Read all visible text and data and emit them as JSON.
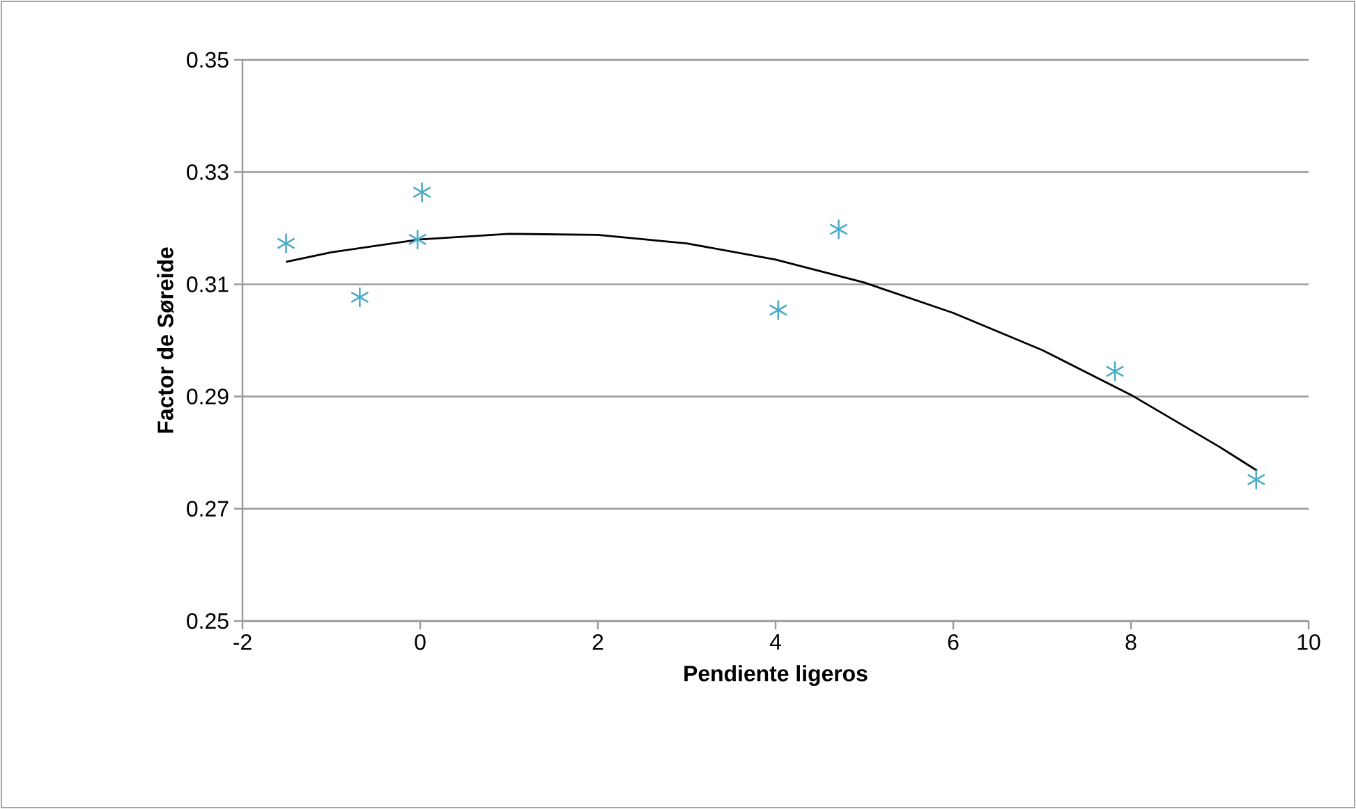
{
  "chart_data": {
    "type": "scatter",
    "xlabel": "Pendiente ligeros",
    "ylabel": "Factor de Søreide",
    "xlim": [
      -2,
      10
    ],
    "ylim": [
      0.25,
      0.35
    ],
    "xticks": [
      -2,
      0,
      2,
      4,
      6,
      8,
      10
    ],
    "yticks": [
      0.25,
      0.27,
      0.29,
      0.31,
      0.33,
      0.35
    ],
    "grid": "y",
    "marker": "cross",
    "series": [
      {
        "color": "#4bacc6",
        "x": [
          -1.51,
          -0.68,
          -0.03,
          0.02,
          4.03,
          4.71,
          7.82,
          9.41
        ],
        "values": [
          0.3173,
          0.3077,
          0.318,
          0.3264,
          0.3054,
          0.3198,
          0.2945,
          0.2752
        ]
      },
      {
        "type": "line",
        "color": "#000000",
        "marker": "none",
        "x": [
          -1.51,
          -1,
          0,
          1,
          2,
          3,
          4,
          5,
          6,
          7,
          8,
          9,
          9.42
        ],
        "values": [
          0.314,
          0.3157,
          0.318,
          0.319,
          0.3188,
          0.3173,
          0.3144,
          0.3103,
          0.3049,
          0.2983,
          0.2903,
          0.281,
          0.2768
        ]
      }
    ]
  }
}
